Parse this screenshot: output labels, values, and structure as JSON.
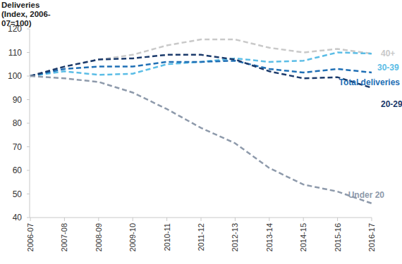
{
  "chart_data": {
    "type": "line",
    "y_label": [
      "Deliveries",
      "(Index, 2006-",
      "07=100)"
    ],
    "categories": [
      "2006-07",
      "2007-08",
      "2008-09",
      "2009-10",
      "2010-11",
      "2011-12",
      "2012-13",
      "2013-14",
      "2014-15",
      "2015-16",
      "2016-17"
    ],
    "series": [
      {
        "name": "40+",
        "color": "#c9c9c9",
        "values": [
          100,
          104,
          107,
          109,
          113,
          115.5,
          115.5,
          112,
          110,
          111.5,
          109.5
        ]
      },
      {
        "name": "30-39",
        "color": "#5bbde6",
        "values": [
          100,
          102,
          100.5,
          101,
          105,
          106,
          107.5,
          106,
          106.5,
          110,
          109.5
        ]
      },
      {
        "name": "Total deliveries",
        "color": "#1f6fb5",
        "values": [
          100,
          103,
          104,
          104,
          106,
          106,
          106.5,
          103,
          101.5,
          103,
          101.5
        ]
      },
      {
        "name": "20-29",
        "color": "#1b3a6b",
        "values": [
          100,
          104,
          107,
          107.5,
          109,
          109,
          107,
          102,
          99,
          99.5,
          95
        ]
      },
      {
        "name": "Under 20",
        "color": "#8e9aab",
        "values": [
          100,
          99,
          97.5,
          93,
          86,
          78,
          71.5,
          61,
          54,
          51,
          46
        ]
      }
    ],
    "ylim": [
      40,
      120
    ],
    "yticks": [
      40,
      50,
      60,
      70,
      80,
      90,
      100,
      110,
      120
    ],
    "grid": false,
    "line_style": "dashed"
  }
}
